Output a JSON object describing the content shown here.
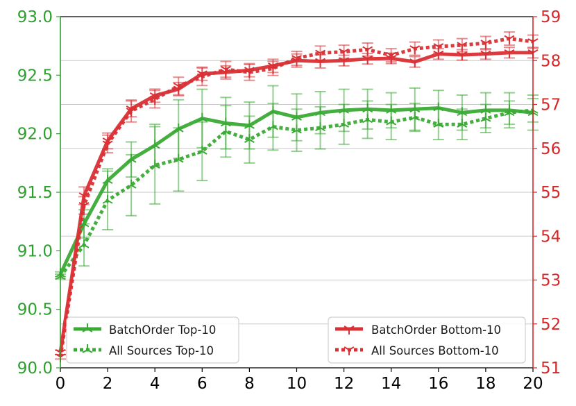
{
  "colors": {
    "left_axis": "#2ca02c",
    "right_axis": "#d62728",
    "green_series": "#3aaa35",
    "red_series": "#d93035",
    "grid": "#c8c8c8"
  },
  "chart_data": {
    "type": "line",
    "title": "",
    "xlabel": "",
    "ylabel_left": "",
    "ylabel_right": "",
    "xlim": [
      0,
      20
    ],
    "ylim_left": [
      90.0,
      93.0
    ],
    "ylim_right": [
      51,
      59
    ],
    "x_ticks": [
      "0",
      "2",
      "4",
      "6",
      "8",
      "10",
      "12",
      "14",
      "16",
      "18",
      "20"
    ],
    "y_left_ticks": [
      "90.0",
      "90.5",
      "91.0",
      "91.5",
      "92.0",
      "92.5",
      "93.0"
    ],
    "y_right_ticks": [
      "51",
      "52",
      "53",
      "54",
      "55",
      "56",
      "57",
      "58",
      "59"
    ],
    "grid": "horizontal",
    "legend_left_placement": "bottom-left",
    "legend_right_placement": "bottom-right",
    "x": [
      0,
      1,
      2,
      3,
      4,
      5,
      6,
      7,
      8,
      9,
      10,
      11,
      12,
      13,
      14,
      15,
      16,
      17,
      18,
      19,
      20
    ],
    "series": [
      {
        "name": "BatchOrder Top-10",
        "axis": "left",
        "style": "solid",
        "marker": "tri-up",
        "values": [
          90.8,
          91.23,
          91.6,
          91.78,
          91.9,
          92.04,
          92.13,
          92.09,
          92.07,
          92.19,
          92.14,
          92.18,
          92.2,
          92.21,
          92.2,
          92.21,
          92.22,
          92.18,
          92.2,
          92.2,
          92.18
        ],
        "errors": [
          0.02,
          0.12,
          0.1,
          0.15,
          0.18,
          0.25,
          0.25,
          0.22,
          0.2,
          0.22,
          0.2,
          0.18,
          0.18,
          0.17,
          0.15,
          0.18,
          0.15,
          0.15,
          0.15,
          0.15,
          0.15
        ]
      },
      {
        "name": "All Sources Top-10",
        "axis": "left",
        "style": "dotted",
        "marker": "tri-up",
        "values": [
          90.78,
          91.05,
          91.43,
          91.56,
          91.73,
          91.78,
          91.85,
          92.02,
          91.95,
          92.06,
          92.03,
          92.05,
          92.08,
          92.12,
          92.1,
          92.14,
          92.08,
          92.08,
          92.13,
          92.18,
          92.2
        ],
        "errors": [
          0.02,
          0.18,
          0.25,
          0.26,
          0.33,
          0.27,
          0.25,
          0.22,
          0.2,
          0.2,
          0.18,
          0.18,
          0.17,
          0.16,
          0.15,
          0.12,
          0.13,
          0.13,
          0.12,
          0.1,
          0.1
        ]
      },
      {
        "name": "BatchOrder Bottom-10",
        "axis": "right",
        "style": "solid",
        "marker": "tri-down",
        "values": [
          51.35,
          54.92,
          56.17,
          56.9,
          57.2,
          57.35,
          57.7,
          57.73,
          57.78,
          57.88,
          58.0,
          57.98,
          58.0,
          58.04,
          58.05,
          57.97,
          58.15,
          58.13,
          58.15,
          58.18,
          58.18
        ],
        "errors": [
          0.05,
          0.2,
          0.18,
          0.18,
          0.15,
          0.15,
          0.15,
          0.15,
          0.15,
          0.15,
          0.15,
          0.15,
          0.12,
          0.12,
          0.12,
          0.12,
          0.12,
          0.12,
          0.12,
          0.12,
          0.12
        ]
      },
      {
        "name": "All Sources Bottom-10",
        "axis": "right",
        "style": "dotted",
        "marker": "tri-down",
        "values": [
          51.25,
          54.7,
          56.1,
          56.85,
          57.12,
          57.42,
          57.63,
          57.8,
          57.73,
          57.82,
          58.05,
          58.17,
          58.2,
          58.25,
          58.12,
          58.27,
          58.32,
          58.35,
          58.4,
          58.5,
          58.43
        ],
        "errors": [
          0.05,
          0.2,
          0.2,
          0.25,
          0.2,
          0.2,
          0.2,
          0.18,
          0.18,
          0.16,
          0.16,
          0.16,
          0.15,
          0.15,
          0.15,
          0.15,
          0.15,
          0.15,
          0.15,
          0.15,
          0.15
        ]
      }
    ]
  }
}
